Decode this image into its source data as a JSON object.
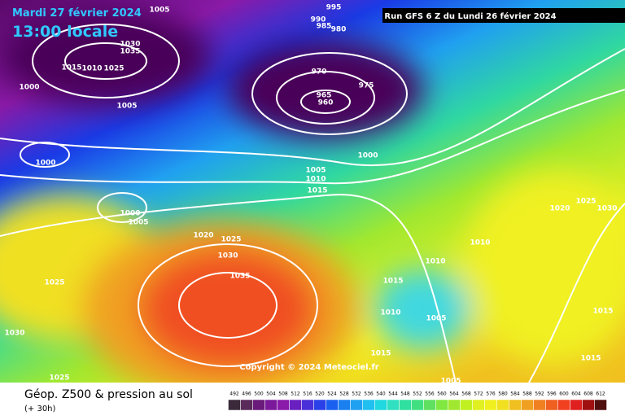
{
  "header": {
    "date": "Mardi 27 février 2024",
    "time": "13:00 locale",
    "run": "Run GFS 6 Z du Lundi 26 février 2024"
  },
  "isobar_labels": [
    "1005",
    "995",
    "990",
    "985",
    "980",
    "1030",
    "1035",
    "1015",
    "1010",
    "1025",
    "1000",
    "970",
    "975",
    "965",
    "960",
    "1005",
    "1000",
    "1000",
    "1005",
    "1010",
    "1015",
    "1000",
    "1005",
    "1025",
    "1020",
    "1030",
    "1020",
    "1025",
    "1030",
    "1010",
    "1010",
    "1035",
    "1015",
    "1025",
    "1010",
    "1005",
    "1015",
    "1030",
    "1015",
    "1015",
    "1025",
    "1005"
  ],
  "copyright": "Copyright © 2024 Meteociel.fr",
  "legend": {
    "title": "Géop. Z500 & pression au sol",
    "lead": "(+ 30h)",
    "scale": [
      492,
      496,
      500,
      504,
      508,
      512,
      516,
      520,
      524,
      528,
      532,
      536,
      540,
      544,
      548,
      552,
      556,
      560,
      564,
      568,
      572,
      576,
      580,
      584,
      588,
      592,
      596,
      600,
      604,
      608,
      612
    ]
  }
}
